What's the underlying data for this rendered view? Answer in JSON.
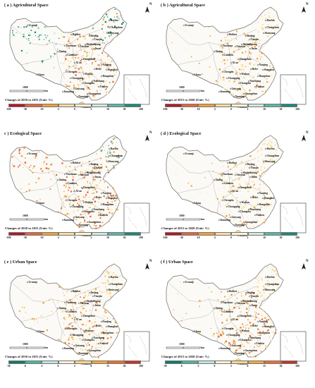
{
  "panels": [
    {
      "title": "( a ) Agricultural Space",
      "caption": "Changes of 2010 to 2015 (Unit: %)",
      "legend": "ag",
      "variant": "a"
    },
    {
      "title": "( b ) Agricultural Space",
      "caption": "Changes of 2015 to 2020 (Unit: %)",
      "legend": "ag",
      "variant": "b"
    },
    {
      "title": "c ) Ecological Space",
      "caption": "Changes of 2010 to 2015 (Unit: %)",
      "legend": "ag",
      "variant": "c"
    },
    {
      "title": "( d ) Ecological Space",
      "caption": "Changes of 2015 to 2020 (Unit: %)",
      "legend": "ag",
      "variant": "d"
    },
    {
      "title": "( e ) Urban Space",
      "caption": "Changes of 2010 to 2015 (Unit: %)",
      "legend": "urban",
      "variant": "e"
    },
    {
      "title": "( f ) Urban Space",
      "caption": "Changes of 2015 to 2020 (Unit: %)",
      "legend": "urban",
      "variant": "f"
    }
  ],
  "scale_label": "1000",
  "scale_unit": "km",
  "north_label": "N",
  "legends": {
    "ag": {
      "ticks": [
        "-100",
        "-30",
        "-10",
        "-2",
        "0",
        "2",
        "10",
        "30",
        "100"
      ],
      "colors": [
        "#b2182b",
        "#e8653a",
        "#f0a037",
        "#fbdc9b",
        "#fdf1d6",
        "#cfeadf",
        "#58b7a6",
        "#1a8a7a",
        "#0b4f46"
      ]
    },
    "urban": {
      "ticks": [
        "-30",
        "-6",
        "-2",
        "0",
        "2",
        "8",
        "15",
        "30",
        "100"
      ],
      "colors": [
        "#0e7a6a",
        "#4fb3a0",
        "#bfe5dc",
        "#fdf1d6",
        "#fbd58a",
        "#f4a63a",
        "#e8702f",
        "#c93324",
        "#8b0f12"
      ]
    }
  },
  "cities": [
    {
      "name": "Urumqi"
    },
    {
      "name": "Harbin"
    },
    {
      "name": "Changchun"
    },
    {
      "name": "Shenyang"
    },
    {
      "name": "Hohhot"
    },
    {
      "name": "Beijing"
    },
    {
      "name": "Tianjin"
    },
    {
      "name": "Yinchuan"
    },
    {
      "name": "Taiyuan"
    },
    {
      "name": "Shijiazhuang"
    },
    {
      "name": "Jinan"
    },
    {
      "name": "Xining"
    },
    {
      "name": "Lanzhou"
    },
    {
      "name": "Zhengzhou"
    },
    {
      "name": "Xi'an"
    },
    {
      "name": "Nanjing"
    },
    {
      "name": "Lhasa"
    },
    {
      "name": "Hefei"
    },
    {
      "name": "Shanghai"
    },
    {
      "name": "Wuhan"
    },
    {
      "name": "Chengdu"
    },
    {
      "name": "Hangzhou"
    },
    {
      "name": "Chongqing"
    },
    {
      "name": "Nanchang"
    },
    {
      "name": "Changsha"
    },
    {
      "name": "Fuzhou"
    },
    {
      "name": "Guiyang"
    },
    {
      "name": "Kunming"
    },
    {
      "name": "Guangzhou"
    },
    {
      "name": "Nanning"
    },
    {
      "name": "Haikou"
    }
  ]
}
